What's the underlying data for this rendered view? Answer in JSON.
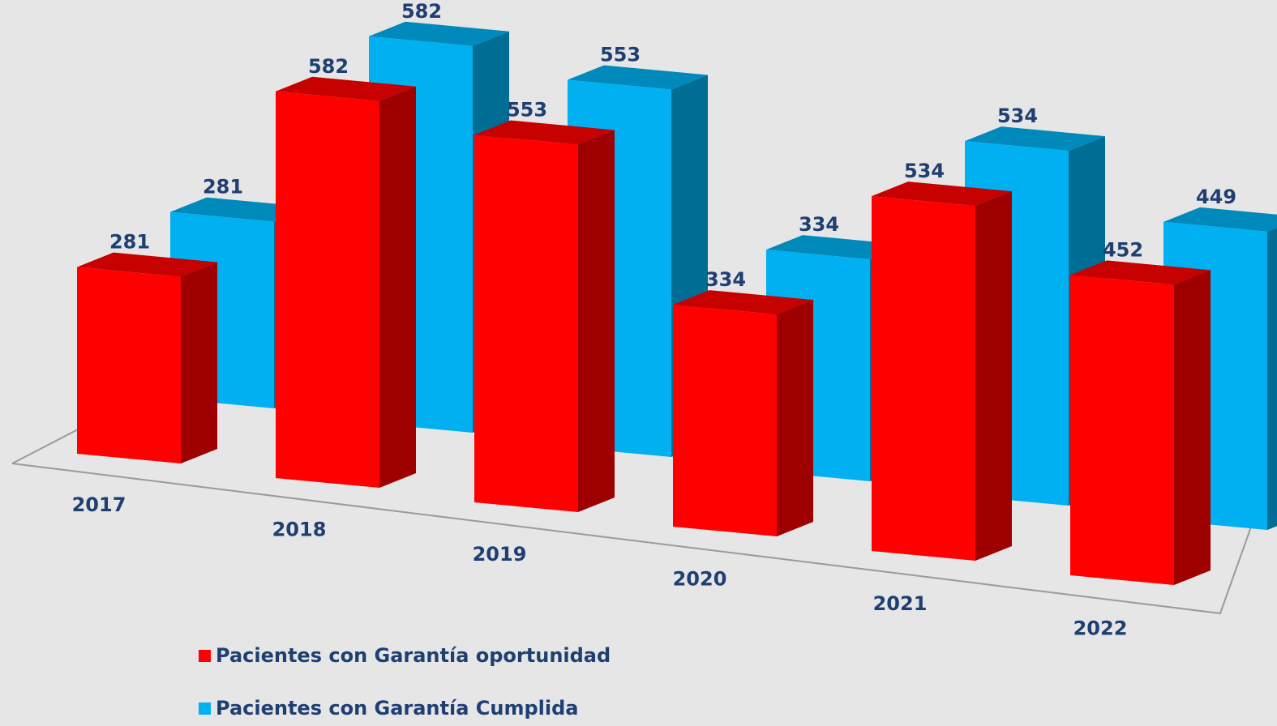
{
  "chart_data": {
    "type": "bar3d",
    "categories": [
      "2017",
      "2018",
      "2019",
      "2020",
      "2021",
      "2022"
    ],
    "series": [
      {
        "name": "Pacientes con Garantía oportunidad",
        "color": "#ff0000",
        "values": [
          281,
          582,
          553,
          334,
          534,
          452
        ]
      },
      {
        "name": "Pacientes con Garantía Cumplida",
        "color": "#00b0f0",
        "values": [
          281,
          582,
          553,
          334,
          534,
          449
        ]
      }
    ],
    "legend": "bottom-left"
  }
}
